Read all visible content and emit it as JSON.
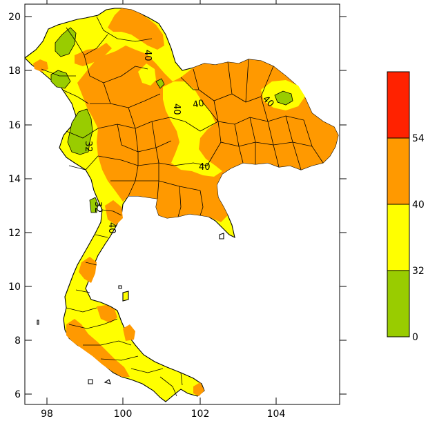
{
  "map": {
    "x_ticks": [
      "98",
      "100",
      "102",
      "104"
    ],
    "y_ticks": [
      "20",
      "18",
      "16",
      "14",
      "12",
      "10",
      "8",
      "6"
    ],
    "contour_labels": [
      "40",
      "40",
      "40",
      "40",
      "40",
      "40",
      "32",
      "32"
    ]
  },
  "legend": {
    "bins": [
      {
        "range": "54+",
        "color": "#ff2200"
      },
      {
        "range": "40-54",
        "color": "#ff9900"
      },
      {
        "range": "32-40",
        "color": "#ffff00"
      },
      {
        "range": "0-32",
        "color": "#99cc00"
      }
    ],
    "labels": [
      "54",
      "40",
      "32",
      "0"
    ]
  },
  "colors": {
    "low": "#99cc00",
    "mid": "#ffff00",
    "high": "#ff9900",
    "extreme": "#ff2200"
  }
}
